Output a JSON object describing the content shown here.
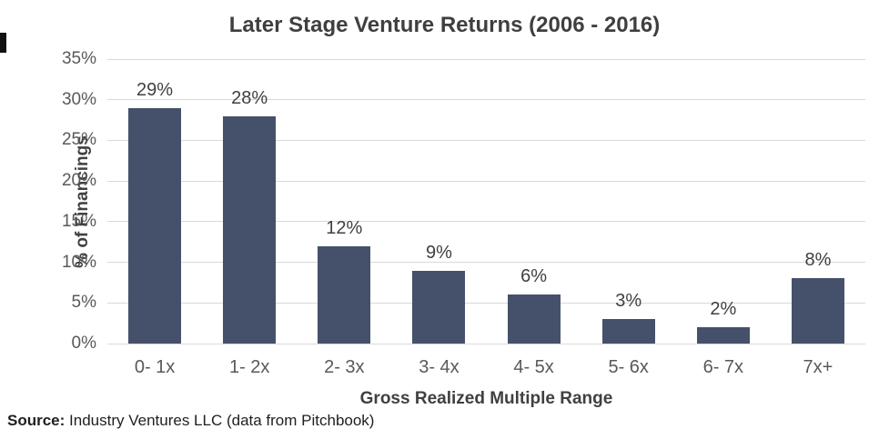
{
  "title": "Later Stage Venture Returns (2006 - 2016)",
  "source": {
    "label": "Source:",
    "text": " Industry Ventures LLC (data from Pitchbook)"
  },
  "chart_data": {
    "type": "bar",
    "title": "Later Stage Venture Returns (2006 - 2016)",
    "categories": [
      "0- 1x",
      "1- 2x",
      "2- 3x",
      "3- 4x",
      "4- 5x",
      "5- 6x",
      "6- 7x",
      "7x+"
    ],
    "values": [
      29,
      28,
      12,
      9,
      6,
      3,
      2,
      8
    ],
    "data_labels": [
      "29%",
      "28%",
      "12%",
      "9%",
      "6%",
      "3%",
      "2%",
      "8%"
    ],
    "xlabel": "Gross Realized Multiple Range",
    "ylabel": "% of Financings",
    "ylim": [
      0,
      35
    ],
    "ytick_step": 5,
    "ytick_labels": [
      "0%",
      "5%",
      "10%",
      "15%",
      "20%",
      "25%",
      "30%",
      "35%"
    ],
    "grid": true,
    "legend": "none",
    "colors": {
      "bar": "#45516b",
      "gridline": "#d9d9d9",
      "data_label": "#404040",
      "tick_label": "#595959",
      "title": "#3f3f3f"
    }
  }
}
